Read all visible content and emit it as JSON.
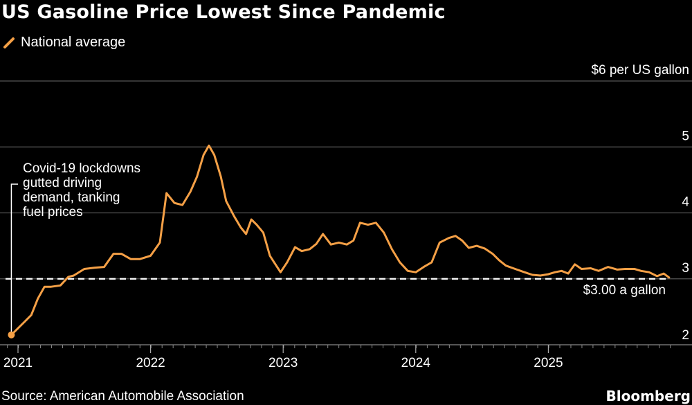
{
  "chart_data": {
    "type": "line",
    "title": "US Gasoline Price Lowest Since Pandemic",
    "legend": [
      {
        "name": "National average",
        "color": "#f5a046"
      }
    ],
    "unit_label": "$6 per US gallon",
    "y_ticks": [
      2,
      3,
      4,
      5,
      6
    ],
    "ylim": [
      2,
      6
    ],
    "x_ticks": [
      "2021",
      "2022",
      "2023",
      "2024",
      "2025"
    ],
    "xlim": [
      2020.92,
      2025.92
    ],
    "reference_line": {
      "value": 3.0,
      "label": "$3.00 a gallon"
    },
    "annotation": {
      "lines": [
        "Covid-19 lockdowns",
        "gutted driving",
        "demand, tanking",
        "fuel prices"
      ],
      "x": 2020.95,
      "y": 2.15
    },
    "series": [
      {
        "name": "National average",
        "color": "#f5a046",
        "points": [
          [
            2020.95,
            2.15
          ],
          [
            2021.0,
            2.25
          ],
          [
            2021.05,
            2.35
          ],
          [
            2021.1,
            2.45
          ],
          [
            2021.15,
            2.7
          ],
          [
            2021.2,
            2.88
          ],
          [
            2021.25,
            2.88
          ],
          [
            2021.32,
            2.9
          ],
          [
            2021.38,
            3.03
          ],
          [
            2021.42,
            3.05
          ],
          [
            2021.5,
            3.15
          ],
          [
            2021.58,
            3.17
          ],
          [
            2021.65,
            3.18
          ],
          [
            2021.72,
            3.38
          ],
          [
            2021.78,
            3.38
          ],
          [
            2021.85,
            3.3
          ],
          [
            2021.92,
            3.3
          ],
          [
            2022.0,
            3.35
          ],
          [
            2022.07,
            3.55
          ],
          [
            2022.12,
            4.3
          ],
          [
            2022.18,
            4.15
          ],
          [
            2022.24,
            4.12
          ],
          [
            2022.3,
            4.32
          ],
          [
            2022.35,
            4.55
          ],
          [
            2022.4,
            4.88
          ],
          [
            2022.44,
            5.02
          ],
          [
            2022.48,
            4.88
          ],
          [
            2022.53,
            4.55
          ],
          [
            2022.57,
            4.18
          ],
          [
            2022.63,
            3.95
          ],
          [
            2022.68,
            3.78
          ],
          [
            2022.72,
            3.68
          ],
          [
            2022.76,
            3.9
          ],
          [
            2022.8,
            3.82
          ],
          [
            2022.85,
            3.7
          ],
          [
            2022.9,
            3.35
          ],
          [
            2022.98,
            3.1
          ],
          [
            2023.03,
            3.25
          ],
          [
            2023.09,
            3.48
          ],
          [
            2023.14,
            3.42
          ],
          [
            2023.2,
            3.45
          ],
          [
            2023.25,
            3.53
          ],
          [
            2023.3,
            3.68
          ],
          [
            2023.36,
            3.52
          ],
          [
            2023.42,
            3.55
          ],
          [
            2023.48,
            3.52
          ],
          [
            2023.53,
            3.58
          ],
          [
            2023.58,
            3.85
          ],
          [
            2023.64,
            3.82
          ],
          [
            2023.7,
            3.85
          ],
          [
            2023.76,
            3.7
          ],
          [
            2023.82,
            3.45
          ],
          [
            2023.88,
            3.25
          ],
          [
            2023.94,
            3.12
          ],
          [
            2024.0,
            3.1
          ],
          [
            2024.06,
            3.18
          ],
          [
            2024.12,
            3.25
          ],
          [
            2024.18,
            3.55
          ],
          [
            2024.25,
            3.62
          ],
          [
            2024.3,
            3.65
          ],
          [
            2024.35,
            3.58
          ],
          [
            2024.4,
            3.47
          ],
          [
            2024.46,
            3.5
          ],
          [
            2024.52,
            3.46
          ],
          [
            2024.58,
            3.38
          ],
          [
            2024.63,
            3.28
          ],
          [
            2024.68,
            3.2
          ],
          [
            2024.75,
            3.15
          ],
          [
            2024.82,
            3.1
          ],
          [
            2024.88,
            3.06
          ],
          [
            2024.94,
            3.05
          ],
          [
            2025.0,
            3.07
          ],
          [
            2025.05,
            3.1
          ],
          [
            2025.1,
            3.12
          ],
          [
            2025.15,
            3.08
          ],
          [
            2025.2,
            3.22
          ],
          [
            2025.25,
            3.15
          ],
          [
            2025.32,
            3.16
          ],
          [
            2025.38,
            3.12
          ],
          [
            2025.45,
            3.18
          ],
          [
            2025.52,
            3.14
          ],
          [
            2025.58,
            3.15
          ],
          [
            2025.65,
            3.15
          ],
          [
            2025.7,
            3.12
          ],
          [
            2025.76,
            3.1
          ],
          [
            2025.82,
            3.04
          ],
          [
            2025.87,
            3.08
          ],
          [
            2025.91,
            3.02
          ]
        ]
      }
    ]
  },
  "source": "Source: American Automobile Association",
  "brand": "Bloomberg"
}
